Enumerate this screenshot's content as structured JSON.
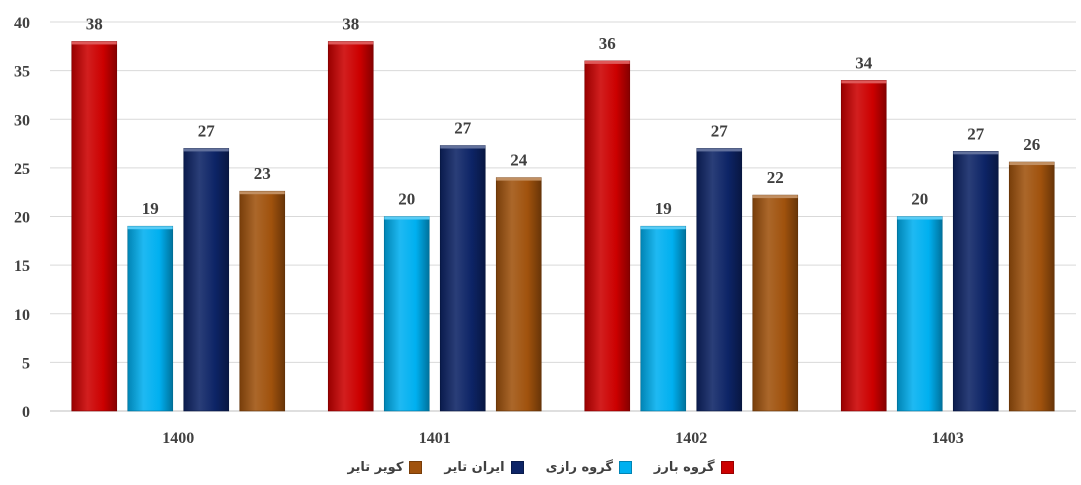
{
  "chart_data": {
    "type": "bar",
    "categories": [
      "1400",
      "1401",
      "1402",
      "1403"
    ],
    "series": [
      {
        "name": "گروه  بارز",
        "color": "#cc0000",
        "values": [
          38,
          38,
          36,
          34
        ],
        "labels": [
          "38",
          "38",
          "36",
          "34"
        ]
      },
      {
        "name": "گروه رازی",
        "color": "#00b0f0",
        "values": [
          19,
          20,
          19,
          20
        ],
        "labels": [
          "19",
          "20",
          "19",
          "20"
        ]
      },
      {
        "name": "ایران تایر",
        "color": "#0d2466",
        "values": [
          27,
          27.3,
          27,
          26.7
        ],
        "labels": [
          "27",
          "27",
          "27",
          "27"
        ]
      },
      {
        "name": "کویر تایر",
        "color": "#a0520d",
        "values": [
          22.6,
          24,
          22.2,
          25.6
        ],
        "labels": [
          "23",
          "24",
          "22",
          "26"
        ]
      }
    ],
    "title": "",
    "xlabel": "",
    "ylabel": "",
    "ylim": [
      0,
      40
    ],
    "yticks": [
      "0",
      "5",
      "10",
      "15",
      "20",
      "25",
      "30",
      "35",
      "40"
    ],
    "grid": true,
    "legend_position": "bottom"
  }
}
